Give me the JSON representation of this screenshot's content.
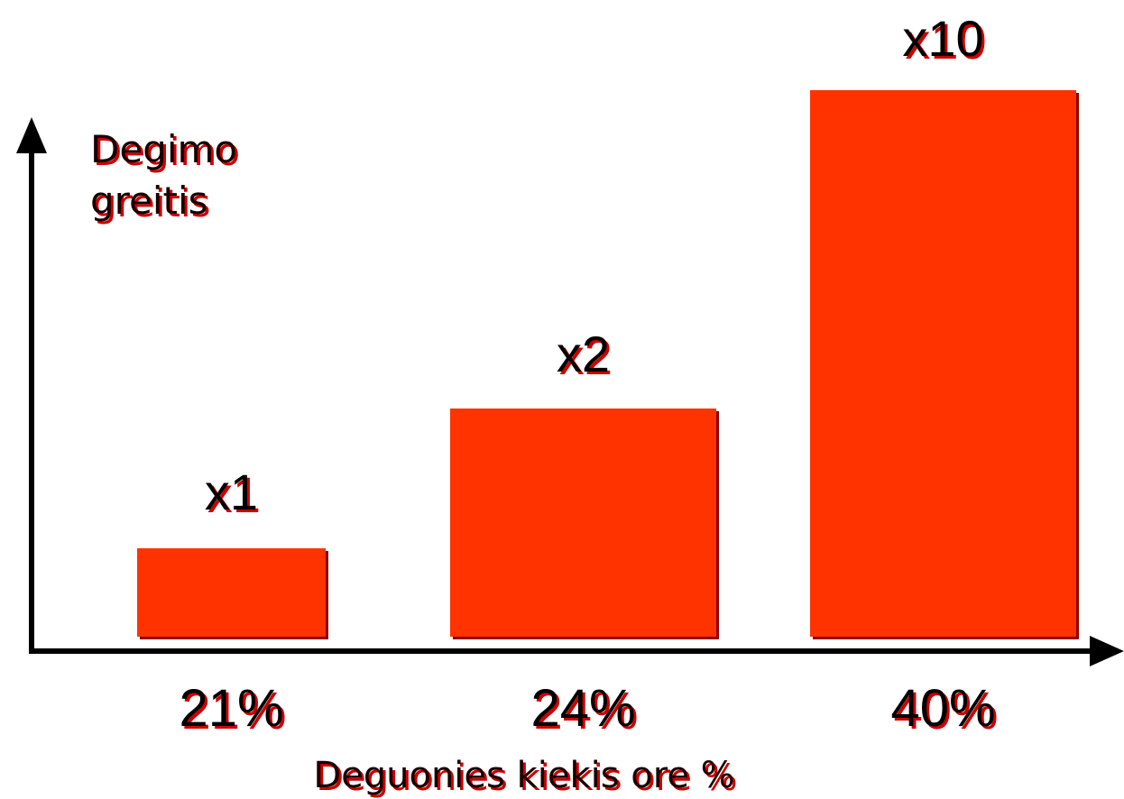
{
  "colors": {
    "bar": "#ff3300",
    "bar_shadow": "#8b0000",
    "axis": "#000000",
    "text_shadow": "#cc0000"
  },
  "chart_data": {
    "type": "bar",
    "categories": [
      "21%",
      "24%",
      "40%"
    ],
    "values": [
      1,
      2,
      10
    ],
    "value_labels": [
      "x1",
      "x2",
      "x10"
    ],
    "xlabel": "Deguonies kiekis ore %",
    "ylabel_lines": [
      "Degimo",
      "greitis"
    ],
    "ylim": [
      0,
      10
    ],
    "grid": false,
    "legend": "none"
  }
}
